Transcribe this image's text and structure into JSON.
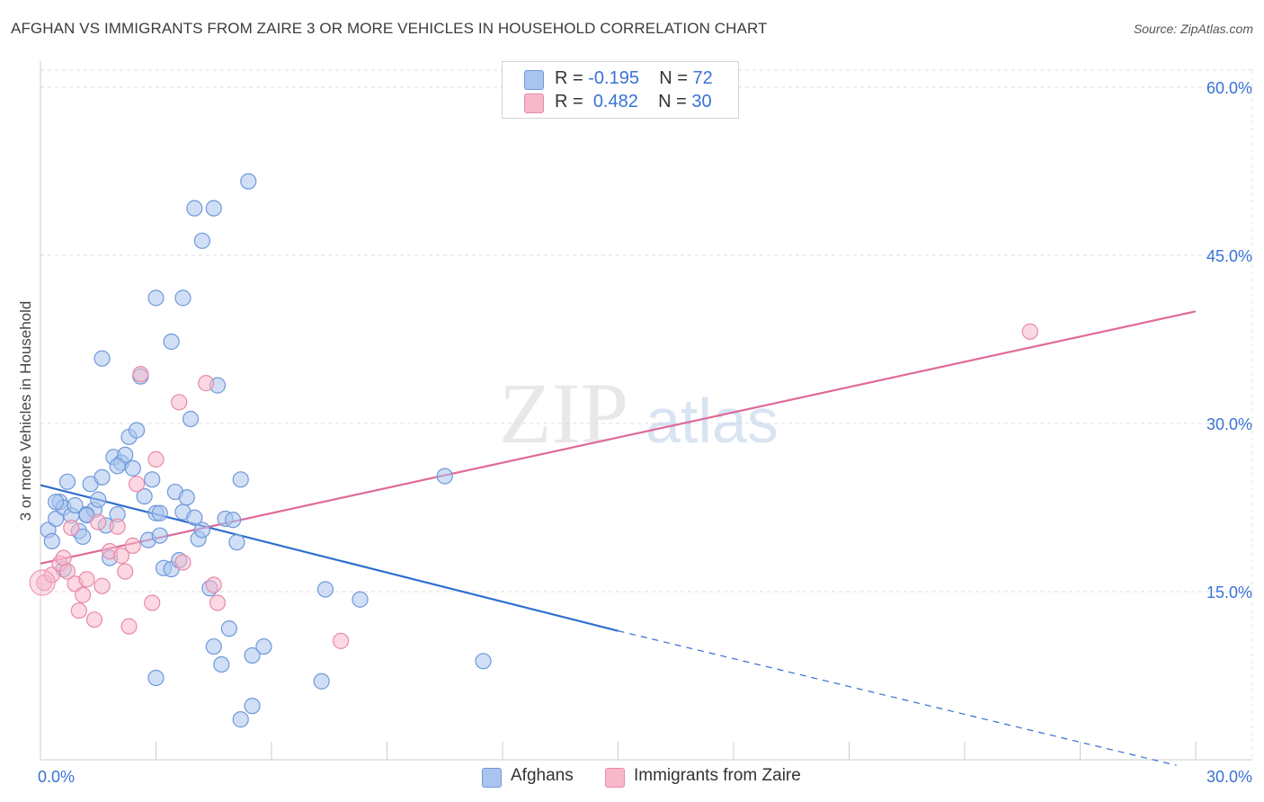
{
  "title": "AFGHAN VS IMMIGRANTS FROM ZAIRE 3 OR MORE VEHICLES IN HOUSEHOLD CORRELATION CHART",
  "source": "Source: ZipAtlas.com",
  "watermark": {
    "zip": "ZIP",
    "atlas": "atlas"
  },
  "legend": {
    "r_label": "R =",
    "n_label": "N =",
    "series": [
      {
        "name": "Afghans",
        "r": "-0.195",
        "n": "72",
        "color": "#a9c4ef",
        "stroke": "#6f98db"
      },
      {
        "name": "Immigrants from Zaire",
        "r": "0.482",
        "n": "30",
        "color": "#f7b8cb",
        "stroke": "#e98aa7"
      }
    ]
  },
  "chart_data": {
    "type": "scatter",
    "title": "AFGHAN VS IMMIGRANTS FROM ZAIRE 3 OR MORE VEHICLES IN HOUSEHOLD CORRELATION CHART",
    "ylabel": "3 or more Vehicles in Household",
    "xlabel": "",
    "xlim": [
      0,
      30
    ],
    "ylim": [
      0,
      60
    ],
    "x_tick_labels": [
      "0.0%",
      "30.0%"
    ],
    "y_tick_labels": [
      "15.0%",
      "30.0%",
      "45.0%",
      "60.0%"
    ],
    "y_ticks": [
      15,
      30,
      45,
      60
    ],
    "grid": true,
    "legend_position": "top-center",
    "series": [
      {
        "name": "Afghans",
        "color": "#a9c4ef",
        "stroke": "#6f98db",
        "trend": {
          "x0": 0,
          "y0": 24.5,
          "x1": 15,
          "y1": 11.5,
          "dash_to_x": 29.5,
          "dash_to_y": -0.5,
          "color": "#2f6fcc"
        },
        "points": [
          [
            0.2,
            20.5
          ],
          [
            0.3,
            19.5
          ],
          [
            0.4,
            21.5
          ],
          [
            0.5,
            23.0
          ],
          [
            0.6,
            22.5
          ],
          [
            0.7,
            24.8
          ],
          [
            0.8,
            21.8
          ],
          [
            0.9,
            22.7
          ],
          [
            1.0,
            20.4
          ],
          [
            1.1,
            19.9
          ],
          [
            1.2,
            21.9
          ],
          [
            1.3,
            24.6
          ],
          [
            1.4,
            22.3
          ],
          [
            1.5,
            23.2
          ],
          [
            1.6,
            25.2
          ],
          [
            1.7,
            20.9
          ],
          [
            1.8,
            18.0
          ],
          [
            1.9,
            27.0
          ],
          [
            2.0,
            21.9
          ],
          [
            2.1,
            26.5
          ],
          [
            2.2,
            27.2
          ],
          [
            2.3,
            28.8
          ],
          [
            2.4,
            26.0
          ],
          [
            2.5,
            29.4
          ],
          [
            2.6,
            34.2
          ],
          [
            2.7,
            23.5
          ],
          [
            2.8,
            19.6
          ],
          [
            2.9,
            25.0
          ],
          [
            3.0,
            22.0
          ],
          [
            3.1,
            20.0
          ],
          [
            3.2,
            17.1
          ],
          [
            3.4,
            17.0
          ],
          [
            3.5,
            23.9
          ],
          [
            3.6,
            17.8
          ],
          [
            3.7,
            22.1
          ],
          [
            3.8,
            23.4
          ],
          [
            3.9,
            30.4
          ],
          [
            4.0,
            21.6
          ],
          [
            4.1,
            19.7
          ],
          [
            4.2,
            20.5
          ],
          [
            4.4,
            15.3
          ],
          [
            4.5,
            10.1
          ],
          [
            4.6,
            33.4
          ],
          [
            4.7,
            8.5
          ],
          [
            4.8,
            21.5
          ],
          [
            4.9,
            11.7
          ],
          [
            5.0,
            21.4
          ],
          [
            5.1,
            19.4
          ],
          [
            5.2,
            25.0
          ],
          [
            5.5,
            9.3
          ],
          [
            5.8,
            10.1
          ],
          [
            4.0,
            49.2
          ],
          [
            3.0,
            41.2
          ],
          [
            3.7,
            41.2
          ],
          [
            3.4,
            37.3
          ],
          [
            1.6,
            35.8
          ],
          [
            4.5,
            49.2
          ],
          [
            4.2,
            46.3
          ],
          [
            5.4,
            51.6
          ],
          [
            3.0,
            7.3
          ],
          [
            5.2,
            3.6
          ],
          [
            5.5,
            4.8
          ],
          [
            7.3,
            7.0
          ],
          [
            7.4,
            15.2
          ],
          [
            8.3,
            14.3
          ],
          [
            10.5,
            25.3
          ],
          [
            11.5,
            8.8
          ],
          [
            0.6,
            17.0
          ],
          [
            1.2,
            21.8
          ],
          [
            2.0,
            26.2
          ],
          [
            3.1,
            22.0
          ],
          [
            0.4,
            23.0
          ]
        ]
      },
      {
        "name": "Immigrants from Zaire",
        "color": "#f7b8cb",
        "stroke": "#e98aa7",
        "trend": {
          "x0": 0,
          "y0": 17.5,
          "x1": 30,
          "y1": 40.0,
          "color": "#e0699a"
        },
        "points": [
          [
            0.1,
            15.8
          ],
          [
            0.3,
            16.5
          ],
          [
            0.5,
            17.5
          ],
          [
            0.6,
            18.0
          ],
          [
            0.7,
            16.8
          ],
          [
            0.8,
            20.7
          ],
          [
            0.9,
            15.7
          ],
          [
            1.0,
            13.3
          ],
          [
            1.1,
            14.7
          ],
          [
            1.2,
            16.1
          ],
          [
            1.4,
            12.5
          ],
          [
            1.5,
            21.2
          ],
          [
            1.6,
            15.5
          ],
          [
            1.8,
            18.6
          ],
          [
            2.0,
            20.8
          ],
          [
            2.1,
            18.2
          ],
          [
            2.2,
            16.8
          ],
          [
            2.3,
            11.9
          ],
          [
            2.4,
            19.1
          ],
          [
            2.5,
            24.6
          ],
          [
            2.6,
            34.4
          ],
          [
            2.9,
            14.0
          ],
          [
            3.0,
            26.8
          ],
          [
            3.6,
            31.9
          ],
          [
            3.7,
            17.6
          ],
          [
            4.3,
            33.6
          ],
          [
            4.5,
            15.6
          ],
          [
            4.6,
            14.0
          ],
          [
            7.8,
            10.6
          ],
          [
            25.7,
            38.2
          ]
        ]
      }
    ]
  }
}
